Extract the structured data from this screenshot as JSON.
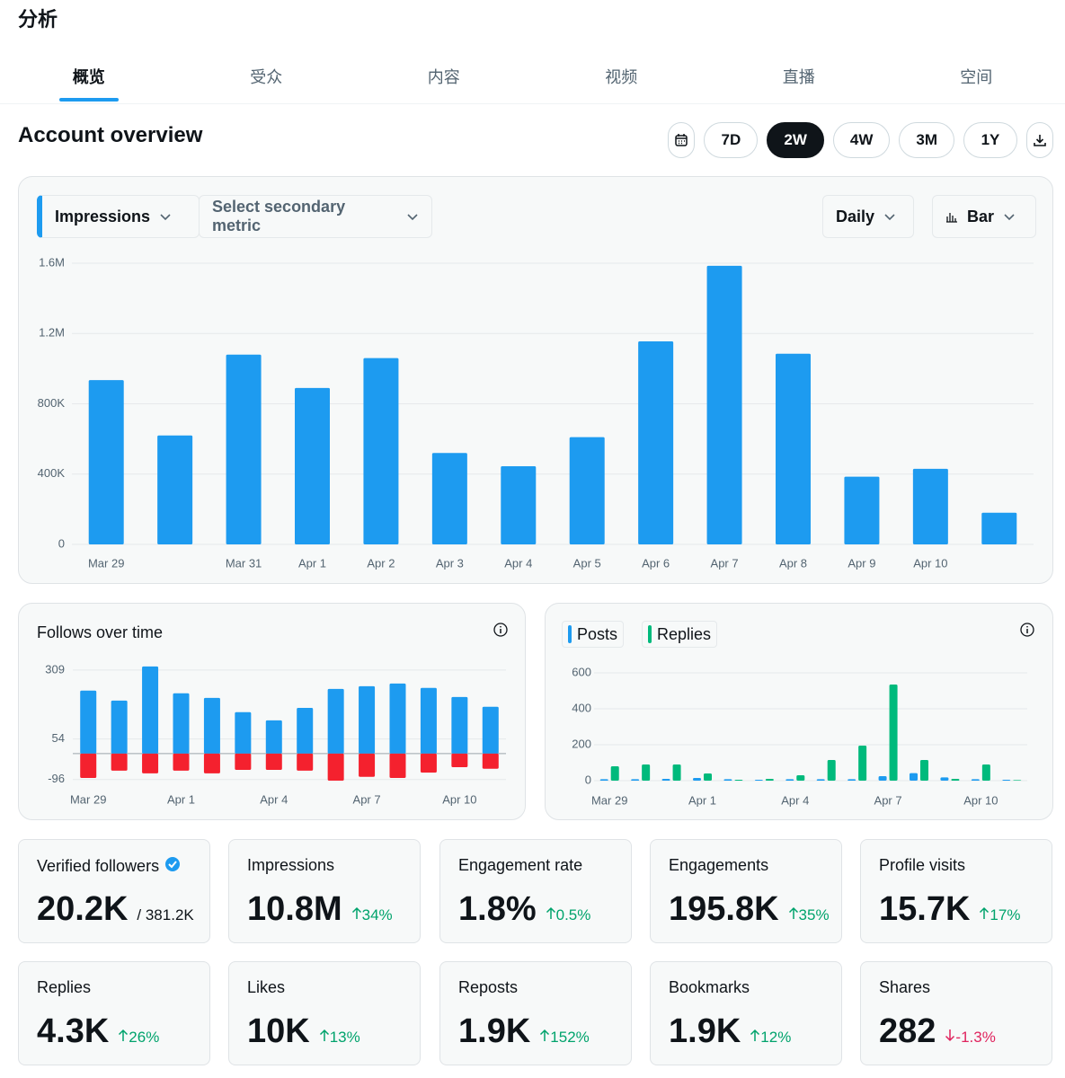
{
  "header": {
    "title": "分析"
  },
  "tabs": [
    "概览",
    "受众",
    "内容",
    "视频",
    "直播",
    "空间"
  ],
  "active_tab": "概览",
  "section_title": "Account overview",
  "range_buttons": [
    "7D",
    "2W",
    "4W",
    "3M",
    "1Y"
  ],
  "active_range": "2W",
  "controls": {
    "primary_metric": "Impressions",
    "secondary_metric": "Select secondary metric",
    "interval": "Daily",
    "chart_style": "Bar"
  },
  "chart_data": [
    {
      "type": "bar",
      "color": "#1d9bf0",
      "categories": [
        "Mar 29",
        null,
        "Mar 31",
        "Apr 1",
        "Apr 2",
        "Apr 3",
        "Apr 4",
        "Apr 5",
        "Apr 6",
        "Apr 7",
        "Apr 8",
        "Apr 9",
        "Apr 10",
        null
      ],
      "values": [
        935000,
        620000,
        1080000,
        890000,
        1060000,
        520000,
        445000,
        610000,
        1155000,
        1585000,
        1085000,
        385000,
        430000,
        180000
      ],
      "ylim": [
        0,
        1600000
      ],
      "yticks": [
        0,
        {
          "value": 400000,
          "label": "400K"
        },
        {
          "value": 800000,
          "label": "800K"
        },
        {
          "value": 1200000,
          "label": "1.2M"
        },
        {
          "value": 1600000,
          "label": "1.6M"
        }
      ],
      "grid": true
    },
    {
      "type": "bar",
      "title": "Follows over time",
      "barmode": "relative",
      "categories": [
        "Mar 29",
        null,
        null,
        "Apr 1",
        null,
        null,
        "Apr 4",
        null,
        null,
        "Apr 7",
        null,
        null,
        "Apr 10",
        null
      ],
      "series": [
        {
          "color": "#1d9bf0",
          "values": [
            233,
            196,
            322,
            223,
            206,
            153,
            123,
            169,
            239,
            249,
            259,
            243,
            209,
            173
          ]
        },
        {
          "color": "#f4212e",
          "values": [
            -90,
            -63,
            -73,
            -63,
            -73,
            -60,
            -60,
            -63,
            -100,
            -86,
            -90,
            -70,
            -50,
            -56
          ]
        }
      ],
      "ylim": [
        -100,
        325
      ],
      "yticks": [
        -96,
        54,
        309
      ],
      "grid": true
    },
    {
      "type": "bar",
      "barmode": "group",
      "categories": [
        "Mar 29",
        null,
        null,
        "Apr 1",
        null,
        null,
        "Apr 4",
        null,
        null,
        "Apr 7",
        null,
        null,
        "Apr 10",
        null
      ],
      "series": [
        {
          "name": "Posts",
          "color": "#1d9bf0",
          "values": [
            8,
            8,
            10,
            15,
            8,
            5,
            8,
            8,
            8,
            25,
            42,
            18,
            8,
            5
          ]
        },
        {
          "name": "Replies",
          "color": "#00ba7c",
          "values": [
            80,
            90,
            90,
            40,
            5,
            10,
            30,
            115,
            195,
            535,
            115,
            10,
            90,
            3
          ]
        }
      ],
      "ylim": [
        0,
        620
      ],
      "yticks": [
        0,
        200,
        400,
        600
      ],
      "grid": true
    }
  ],
  "cards": [
    {
      "label": "Verified followers",
      "value": "20.2K",
      "total": "/ 381.2K",
      "verified": true
    },
    {
      "label": "Impressions",
      "value": "10.8M",
      "change": "34%",
      "direction": "up"
    },
    {
      "label": "Engagement rate",
      "value": "1.8%",
      "change": "0.5%",
      "direction": "up"
    },
    {
      "label": "Engagements",
      "value": "195.8K",
      "change": "35%",
      "direction": "up"
    },
    {
      "label": "Profile visits",
      "value": "15.7K",
      "change": "17%",
      "direction": "up"
    },
    {
      "label": "Replies",
      "value": "4.3K",
      "change": "26%",
      "direction": "up"
    },
    {
      "label": "Likes",
      "value": "10K",
      "change": "13%",
      "direction": "up"
    },
    {
      "label": "Reposts",
      "value": "1.9K",
      "change": "152%",
      "direction": "up"
    },
    {
      "label": "Bookmarks",
      "value": "1.9K",
      "change": "12%",
      "direction": "up"
    },
    {
      "label": "Shares",
      "value": "282",
      "change": "-1.3%",
      "direction": "down"
    }
  ]
}
